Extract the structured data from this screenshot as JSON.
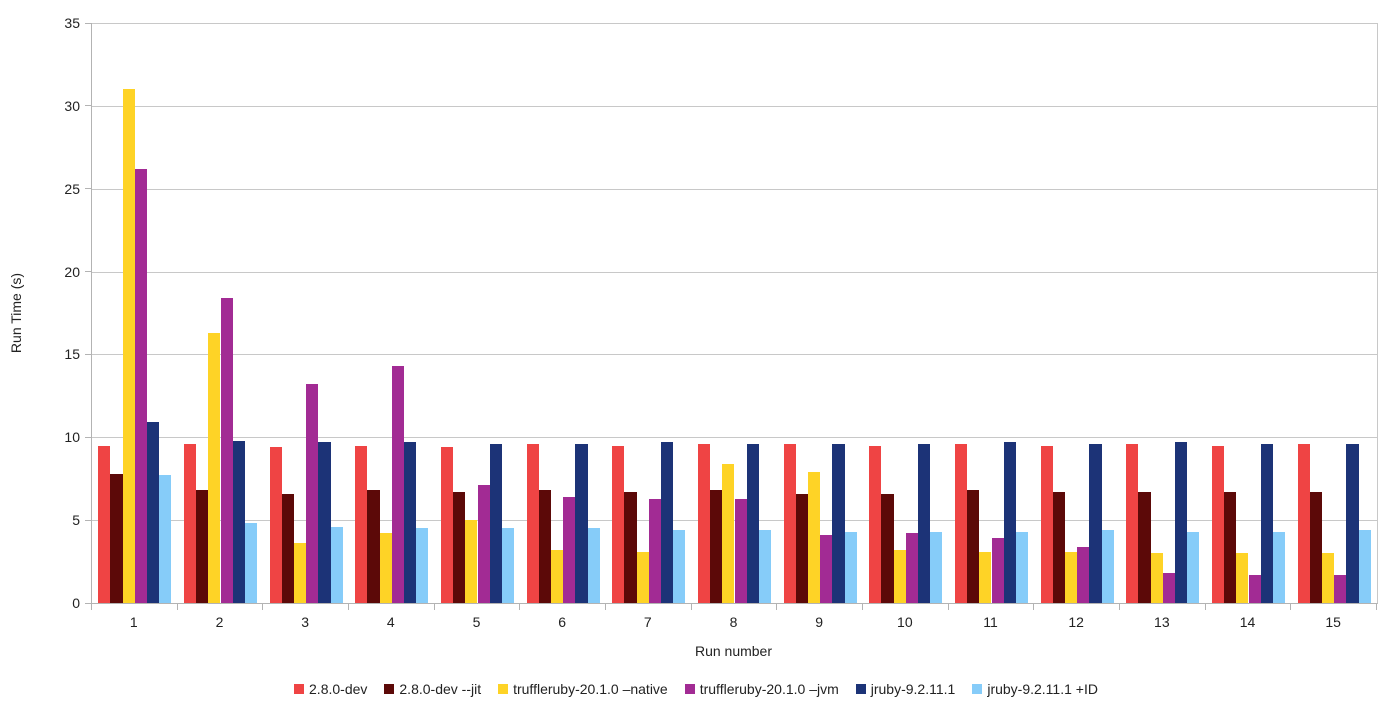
{
  "chart_data": {
    "type": "bar",
    "title": "",
    "xlabel": "Run number",
    "ylabel": "Run Time (s)",
    "ylim": [
      0,
      35
    ],
    "yticks": [
      0,
      5,
      10,
      15,
      20,
      25,
      30,
      35
    ],
    "grid": true,
    "legend_position": "bottom",
    "categories": [
      "1",
      "2",
      "3",
      "4",
      "5",
      "6",
      "7",
      "8",
      "9",
      "10",
      "11",
      "12",
      "13",
      "14",
      "15"
    ],
    "series": [
      {
        "name": "2.8.0-dev",
        "color": "#ef4444",
        "values": [
          9.5,
          9.6,
          9.4,
          9.5,
          9.4,
          9.6,
          9.5,
          9.6,
          9.6,
          9.5,
          9.6,
          9.5,
          9.6,
          9.5,
          9.6
        ]
      },
      {
        "name": "2.8.0-dev --jit",
        "color": "#5c0908",
        "values": [
          7.8,
          6.8,
          6.6,
          6.8,
          6.7,
          6.8,
          6.7,
          6.8,
          6.6,
          6.6,
          6.8,
          6.7,
          6.7,
          6.7,
          6.7
        ]
      },
      {
        "name": "truffleruby-20.1.0 –native",
        "color": "#fed326",
        "values": [
          31.0,
          16.3,
          3.6,
          4.2,
          5.0,
          3.2,
          3.1,
          8.4,
          7.9,
          3.2,
          3.1,
          3.1,
          3.0,
          3.0,
          3.0
        ]
      },
      {
        "name": "truffleruby-20.1.0 –jvm",
        "color": "#a22b94",
        "values": [
          26.2,
          18.4,
          13.2,
          14.3,
          7.1,
          6.4,
          6.3,
          6.3,
          4.1,
          4.2,
          3.9,
          3.4,
          1.8,
          1.7,
          1.7
        ]
      },
      {
        "name": "jruby-9.2.11.1",
        "color": "#1c3377",
        "values": [
          10.9,
          9.8,
          9.7,
          9.7,
          9.6,
          9.6,
          9.7,
          9.6,
          9.6,
          9.6,
          9.7,
          9.6,
          9.7,
          9.6,
          9.6
        ]
      },
      {
        "name": "jruby-9.2.11.1 +ID",
        "color": "#86ccf9",
        "values": [
          7.7,
          4.8,
          4.6,
          4.5,
          4.5,
          4.5,
          4.4,
          4.4,
          4.3,
          4.3,
          4.3,
          4.4,
          4.3,
          4.3,
          4.4
        ]
      }
    ]
  },
  "colors": {
    "grid": "#c8c8c8",
    "axis": "#b3b3b3",
    "text": "#222222",
    "background": "#ffffff"
  }
}
